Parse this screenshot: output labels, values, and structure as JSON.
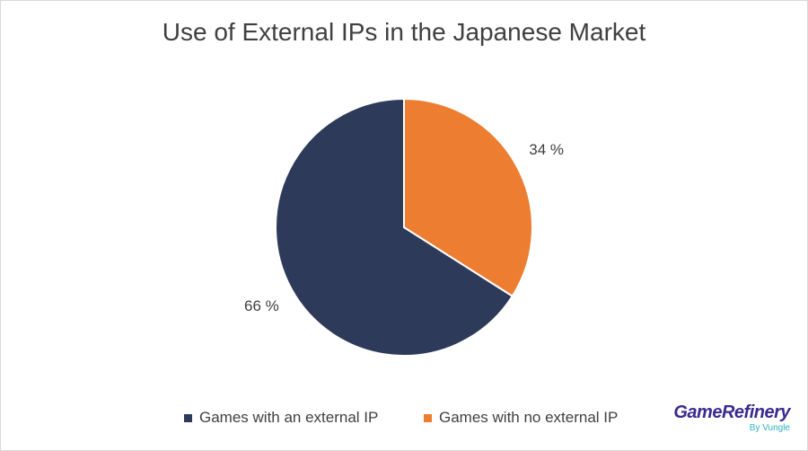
{
  "chart_data": {
    "type": "pie",
    "title": "Use of External IPs in the Japanese Market",
    "categories": [
      "Games with an external IP",
      "Games with no external IP"
    ],
    "values": [
      66,
      34
    ],
    "data_labels": [
      "66 %",
      "34 %"
    ],
    "colors": [
      "#2d3a5a",
      "#ed7d31"
    ],
    "legend_position": "bottom"
  },
  "branding": {
    "name": "GameRefinery",
    "byline": "By Vungle"
  }
}
